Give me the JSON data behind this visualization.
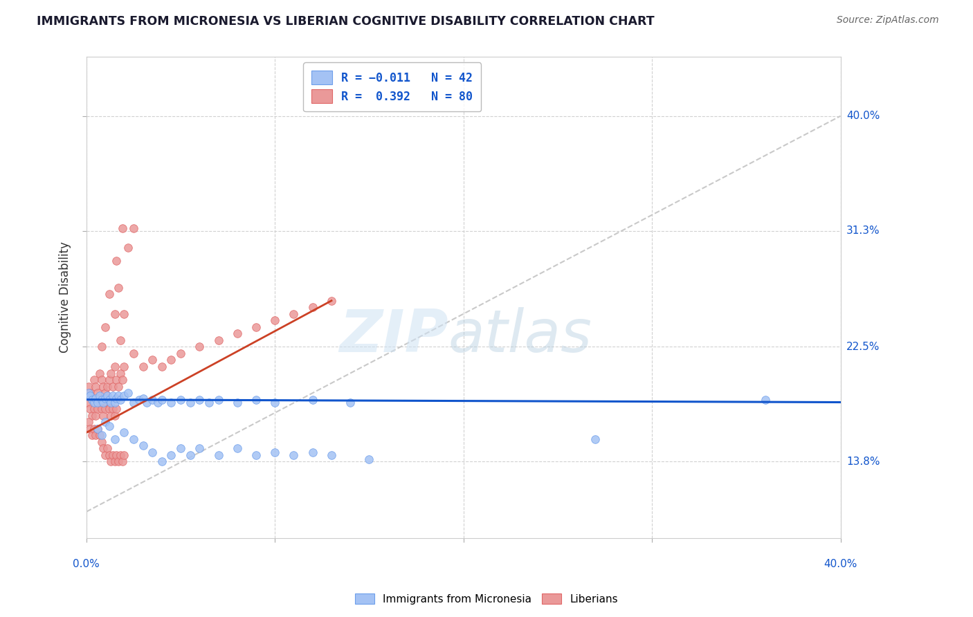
{
  "title": "IMMIGRANTS FROM MICRONESIA VS LIBERIAN COGNITIVE DISABILITY CORRELATION CHART",
  "source": "Source: ZipAtlas.com",
  "ylabel": "Cognitive Disability",
  "ytick_labels": [
    "40.0%",
    "31.3%",
    "22.5%",
    "13.8%"
  ],
  "ytick_values": [
    0.4,
    0.313,
    0.225,
    0.138
  ],
  "xlim": [
    0.0,
    0.4
  ],
  "ylim": [
    0.08,
    0.445
  ],
  "watermark_zip": "ZIP",
  "watermark_atlas": "atlas",
  "blue_color": "#a4c2f4",
  "blue_edge": "#6d9eeb",
  "pink_color": "#ea9999",
  "pink_edge": "#e06666",
  "trend_blue_color": "#1155cc",
  "trend_pink_color": "#cc4125",
  "diag_line_color": "#c9c9c9",
  "scatter_blue": [
    [
      0.001,
      0.19
    ],
    [
      0.002,
      0.188
    ],
    [
      0.003,
      0.185
    ],
    [
      0.004,
      0.183
    ],
    [
      0.005,
      0.186
    ],
    [
      0.006,
      0.183
    ],
    [
      0.007,
      0.188
    ],
    [
      0.008,
      0.185
    ],
    [
      0.009,
      0.183
    ],
    [
      0.01,
      0.186
    ],
    [
      0.011,
      0.188
    ],
    [
      0.012,
      0.185
    ],
    [
      0.013,
      0.183
    ],
    [
      0.014,
      0.188
    ],
    [
      0.015,
      0.183
    ],
    [
      0.016,
      0.186
    ],
    [
      0.017,
      0.188
    ],
    [
      0.018,
      0.185
    ],
    [
      0.02,
      0.188
    ],
    [
      0.022,
      0.19
    ],
    [
      0.025,
      0.183
    ],
    [
      0.028,
      0.185
    ],
    [
      0.03,
      0.186
    ],
    [
      0.032,
      0.183
    ],
    [
      0.035,
      0.185
    ],
    [
      0.038,
      0.183
    ],
    [
      0.04,
      0.185
    ],
    [
      0.045,
      0.183
    ],
    [
      0.05,
      0.185
    ],
    [
      0.055,
      0.183
    ],
    [
      0.06,
      0.185
    ],
    [
      0.065,
      0.183
    ],
    [
      0.07,
      0.185
    ],
    [
      0.08,
      0.183
    ],
    [
      0.09,
      0.185
    ],
    [
      0.1,
      0.183
    ],
    [
      0.12,
      0.185
    ],
    [
      0.14,
      0.183
    ],
    [
      0.006,
      0.163
    ],
    [
      0.008,
      0.158
    ],
    [
      0.01,
      0.168
    ],
    [
      0.012,
      0.165
    ],
    [
      0.015,
      0.155
    ],
    [
      0.02,
      0.16
    ],
    [
      0.025,
      0.155
    ],
    [
      0.03,
      0.15
    ],
    [
      0.035,
      0.145
    ],
    [
      0.04,
      0.138
    ],
    [
      0.045,
      0.143
    ],
    [
      0.05,
      0.148
    ],
    [
      0.055,
      0.143
    ],
    [
      0.06,
      0.148
    ],
    [
      0.07,
      0.143
    ],
    [
      0.08,
      0.148
    ],
    [
      0.09,
      0.143
    ],
    [
      0.1,
      0.145
    ],
    [
      0.11,
      0.143
    ],
    [
      0.12,
      0.145
    ],
    [
      0.13,
      0.143
    ],
    [
      0.15,
      0.14
    ],
    [
      0.27,
      0.155
    ],
    [
      0.36,
      0.185
    ]
  ],
  "scatter_pink": [
    [
      0.001,
      0.195
    ],
    [
      0.002,
      0.19
    ],
    [
      0.003,
      0.185
    ],
    [
      0.004,
      0.2
    ],
    [
      0.005,
      0.195
    ],
    [
      0.006,
      0.19
    ],
    [
      0.007,
      0.205
    ],
    [
      0.008,
      0.2
    ],
    [
      0.009,
      0.195
    ],
    [
      0.01,
      0.19
    ],
    [
      0.011,
      0.195
    ],
    [
      0.012,
      0.2
    ],
    [
      0.013,
      0.205
    ],
    [
      0.014,
      0.195
    ],
    [
      0.015,
      0.21
    ],
    [
      0.016,
      0.2
    ],
    [
      0.017,
      0.195
    ],
    [
      0.018,
      0.205
    ],
    [
      0.019,
      0.2
    ],
    [
      0.02,
      0.21
    ],
    [
      0.001,
      0.183
    ],
    [
      0.002,
      0.178
    ],
    [
      0.003,
      0.173
    ],
    [
      0.004,
      0.178
    ],
    [
      0.005,
      0.173
    ],
    [
      0.006,
      0.178
    ],
    [
      0.007,
      0.183
    ],
    [
      0.008,
      0.178
    ],
    [
      0.009,
      0.173
    ],
    [
      0.01,
      0.178
    ],
    [
      0.011,
      0.183
    ],
    [
      0.012,
      0.178
    ],
    [
      0.013,
      0.173
    ],
    [
      0.014,
      0.178
    ],
    [
      0.015,
      0.173
    ],
    [
      0.016,
      0.178
    ],
    [
      0.001,
      0.168
    ],
    [
      0.002,
      0.163
    ],
    [
      0.003,
      0.158
    ],
    [
      0.004,
      0.163
    ],
    [
      0.005,
      0.158
    ],
    [
      0.006,
      0.163
    ],
    [
      0.007,
      0.158
    ],
    [
      0.008,
      0.153
    ],
    [
      0.009,
      0.148
    ],
    [
      0.01,
      0.143
    ],
    [
      0.011,
      0.148
    ],
    [
      0.012,
      0.143
    ],
    [
      0.013,
      0.138
    ],
    [
      0.014,
      0.143
    ],
    [
      0.015,
      0.138
    ],
    [
      0.016,
      0.143
    ],
    [
      0.017,
      0.138
    ],
    [
      0.018,
      0.143
    ],
    [
      0.019,
      0.138
    ],
    [
      0.02,
      0.143
    ],
    [
      0.012,
      0.265
    ],
    [
      0.016,
      0.29
    ],
    [
      0.019,
      0.315
    ],
    [
      0.022,
      0.3
    ],
    [
      0.025,
      0.315
    ],
    [
      0.015,
      0.25
    ],
    [
      0.017,
      0.27
    ],
    [
      0.02,
      0.25
    ],
    [
      0.018,
      0.23
    ],
    [
      0.025,
      0.22
    ],
    [
      0.03,
      0.21
    ],
    [
      0.035,
      0.215
    ],
    [
      0.04,
      0.21
    ],
    [
      0.045,
      0.215
    ],
    [
      0.05,
      0.22
    ],
    [
      0.008,
      0.225
    ],
    [
      0.01,
      0.24
    ],
    [
      0.06,
      0.225
    ],
    [
      0.07,
      0.23
    ],
    [
      0.08,
      0.235
    ],
    [
      0.09,
      0.24
    ],
    [
      0.1,
      0.245
    ],
    [
      0.11,
      0.25
    ],
    [
      0.12,
      0.255
    ],
    [
      0.13,
      0.26
    ]
  ],
  "blue_trend_x": [
    0.0,
    0.4
  ],
  "blue_trend_y": [
    0.185,
    0.183
  ],
  "pink_trend_x": [
    0.0,
    0.13
  ],
  "pink_trend_y": [
    0.16,
    0.26
  ],
  "diag_line_x": [
    0.0,
    0.4
  ],
  "diag_line_y": [
    0.1,
    0.4
  ],
  "grid_color": "#cccccc",
  "bg_color": "#ffffff"
}
